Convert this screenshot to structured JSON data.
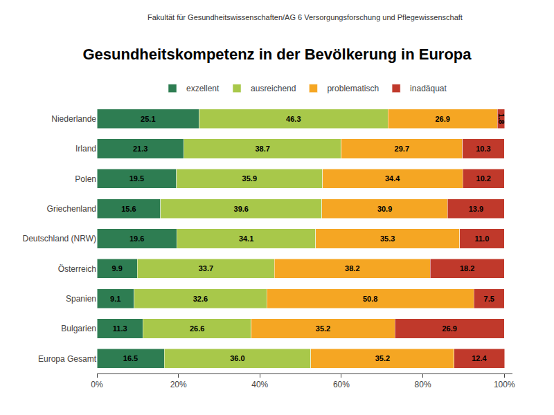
{
  "chart_data": {
    "type": "bar",
    "orientation": "horizontal",
    "stacked": true,
    "title": "Gesundheitskompetenz in der Bevölkerung in Europa",
    "subtitle": "Fakultät für Gesundheitswissenschaften/AG 6 Versorgungsforschung und Pflegewissenschaft",
    "categories": [
      "Niederlande",
      "Irland",
      "Polen",
      "Griechenland",
      "Deutschland (NRW)",
      "Österreich",
      "Spanien",
      "Bulgarien",
      "Europa Gesamt"
    ],
    "series": [
      {
        "name": "exzellent",
        "color": "#2e7d52",
        "values": [
          25.1,
          21.3,
          19.5,
          15.6,
          19.6,
          9.9,
          9.1,
          11.3,
          16.5
        ],
        "value_labels": [
          "25.1",
          "21.3",
          "19.5",
          "15.6",
          "19.6",
          "9.9",
          "9.1",
          "11.3",
          "16.5"
        ]
      },
      {
        "name": "ausreichend",
        "color": "#a8c84a",
        "values": [
          46.3,
          38.7,
          35.9,
          39.6,
          34.1,
          33.7,
          32.6,
          26.6,
          36.0
        ],
        "value_labels": [
          "46.3",
          "38.7",
          "35.9",
          "39.6",
          "34.1",
          "33.7",
          "32.6",
          "26.6",
          "36.0"
        ]
      },
      {
        "name": "problematisch",
        "color": "#f5a623",
        "values": [
          26.9,
          29.7,
          34.4,
          30.9,
          35.3,
          38.2,
          50.8,
          35.2,
          35.2
        ],
        "value_labels": [
          "26.9",
          "29.7",
          "34.4",
          "30.9",
          "35.3",
          "38.2",
          "50.8",
          "35.2",
          "35.2"
        ]
      },
      {
        "name": "inadäquat",
        "color": "#c0392b",
        "values": [
          1.8,
          10.3,
          10.2,
          13.9,
          11.0,
          18.2,
          7.5,
          26.9,
          12.4
        ],
        "value_labels": [
          "1.8",
          "10.3",
          "10.2",
          "13.9",
          "11.0",
          "18.2",
          "7.5",
          "26.9",
          "12.4"
        ]
      }
    ],
    "xlim": [
      0,
      102
    ],
    "xticks": [
      {
        "value": 0,
        "label": "0%"
      },
      {
        "value": 20,
        "label": "20%"
      },
      {
        "value": 40,
        "label": "40%"
      },
      {
        "value": 60,
        "label": "60%"
      },
      {
        "value": 80,
        "label": "80%"
      },
      {
        "value": 100,
        "label": "100%"
      }
    ],
    "data_labels": true,
    "grid": false,
    "legend": "top"
  }
}
